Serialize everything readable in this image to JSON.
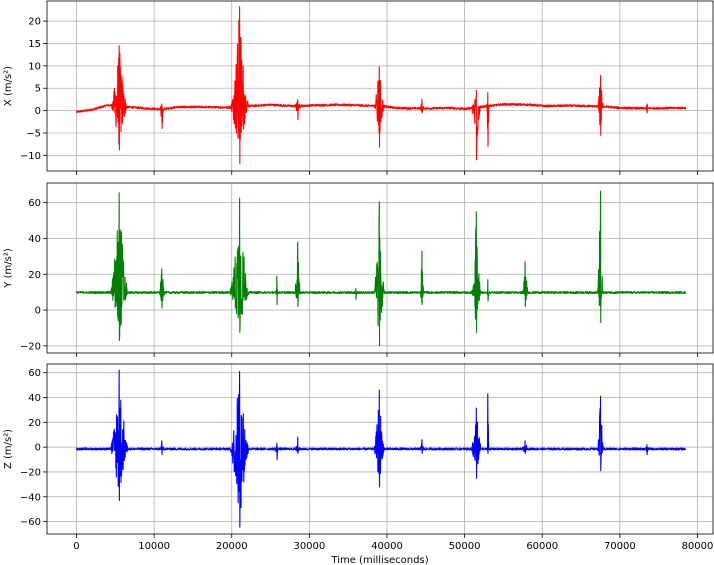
{
  "chart_data": [
    {
      "type": "line",
      "ylabel": "X (m/s²)",
      "xlabel": "",
      "xlim": [
        -3800,
        82000
      ],
      "ylim": [
        -13.5,
        24.5
      ],
      "xticks": [
        0,
        10000,
        20000,
        30000,
        40000,
        50000,
        60000,
        70000,
        80000
      ],
      "yticks": [
        -10,
        -5,
        0,
        5,
        10,
        15,
        20
      ],
      "ytick_labels": [
        "−10",
        "−5",
        "0",
        "5",
        "10",
        "15",
        "20"
      ],
      "show_xtick_labels": false,
      "grid": true,
      "color": "#ff0000",
      "baseline": [
        [
          0,
          -0.3
        ],
        [
          2000,
          0.2
        ],
        [
          4000,
          1.2
        ],
        [
          6500,
          0.8
        ],
        [
          9000,
          0.5
        ],
        [
          11000,
          0.3
        ],
        [
          13000,
          0.8
        ],
        [
          16000,
          0.8
        ],
        [
          19500,
          0.7
        ],
        [
          22000,
          1.0
        ],
        [
          25000,
          1.3
        ],
        [
          28000,
          1.0
        ],
        [
          31000,
          1.2
        ],
        [
          34000,
          1.3
        ],
        [
          37500,
          1.1
        ],
        [
          39500,
          1.0
        ],
        [
          41000,
          0.6
        ],
        [
          43000,
          0.5
        ],
        [
          46000,
          0.5
        ],
        [
          48000,
          0.6
        ],
        [
          50000,
          0.4
        ],
        [
          52500,
          0.9
        ],
        [
          55000,
          1.4
        ],
        [
          58500,
          1.3
        ],
        [
          60500,
          1.0
        ],
        [
          63000,
          1.1
        ],
        [
          66000,
          1.0
        ],
        [
          68000,
          0.9
        ],
        [
          70000,
          0.6
        ],
        [
          73000,
          0.5
        ],
        [
          78500,
          0.6
        ]
      ],
      "bursts": [
        {
          "center": 5500,
          "width": 1100,
          "max": 14.5,
          "min": -8.8
        },
        {
          "center": 11000,
          "width": 300,
          "max": 1.5,
          "min": -4.0
        },
        {
          "center": 21000,
          "width": 1200,
          "max": 23.2,
          "min": -11.8
        },
        {
          "center": 28500,
          "width": 400,
          "max": 2.5,
          "min": -2.0
        },
        {
          "center": 39000,
          "width": 700,
          "max": 9.8,
          "min": -8.2
        },
        {
          "center": 44500,
          "width": 300,
          "max": 2.5,
          "min": -0.5
        },
        {
          "center": 51500,
          "width": 600,
          "max": 4.5,
          "min": -11.0
        },
        {
          "center": 53000,
          "width": 200,
          "max": 4.0,
          "min": -8.0
        },
        {
          "center": 67500,
          "width": 400,
          "max": 7.8,
          "min": -5.5
        },
        {
          "center": 73500,
          "width": 200,
          "max": 1.5,
          "min": -0.5
        }
      ]
    },
    {
      "type": "line",
      "ylabel": "Y (m/s²)",
      "xlabel": "",
      "xlim": [
        -3800,
        82000
      ],
      "ylim": [
        -24,
        71
      ],
      "xticks": [
        0,
        10000,
        20000,
        30000,
        40000,
        50000,
        60000,
        70000,
        80000
      ],
      "yticks": [
        -20,
        0,
        20,
        40,
        60
      ],
      "ytick_labels": [
        "−20",
        "0",
        "20",
        "40",
        "60"
      ],
      "show_xtick_labels": false,
      "grid": true,
      "color": "#008000",
      "baseline": [
        [
          0,
          9.8
        ],
        [
          78500,
          9.8
        ]
      ],
      "bursts": [
        {
          "center": 5500,
          "width": 1200,
          "max": 65.5,
          "min": -17.0
        },
        {
          "center": 11000,
          "width": 400,
          "max": 23.0,
          "min": 1.0
        },
        {
          "center": 21000,
          "width": 1300,
          "max": 62.5,
          "min": -12.5
        },
        {
          "center": 25800,
          "width": 200,
          "max": 19.0,
          "min": 3.0
        },
        {
          "center": 28500,
          "width": 400,
          "max": 38.0,
          "min": 2.0
        },
        {
          "center": 36000,
          "width": 300,
          "max": 12.0,
          "min": 6.0
        },
        {
          "center": 39000,
          "width": 700,
          "max": 60.5,
          "min": -20.0
        },
        {
          "center": 44500,
          "width": 300,
          "max": 33.0,
          "min": 3.0
        },
        {
          "center": 51500,
          "width": 600,
          "max": 55.0,
          "min": -12.5
        },
        {
          "center": 53000,
          "width": 200,
          "max": 17.0,
          "min": 5.0
        },
        {
          "center": 57800,
          "width": 400,
          "max": 27.0,
          "min": 2.0
        },
        {
          "center": 67500,
          "width": 400,
          "max": 66.5,
          "min": -7.0
        }
      ]
    },
    {
      "type": "line",
      "ylabel": "Z (m/s²)",
      "xlabel": "Time (milliseconds)",
      "xlim": [
        -3800,
        82000
      ],
      "ylim": [
        -70,
        67
      ],
      "xticks": [
        0,
        10000,
        20000,
        30000,
        40000,
        50000,
        60000,
        70000,
        80000
      ],
      "xtick_labels": [
        "0",
        "10000",
        "20000",
        "30000",
        "40000",
        "50000",
        "60000",
        "70000",
        "80000"
      ],
      "yticks": [
        -60,
        -40,
        -20,
        0,
        20,
        40,
        60
      ],
      "ytick_labels": [
        "−60",
        "−40",
        "−20",
        "0",
        "20",
        "40",
        "60"
      ],
      "show_xtick_labels": true,
      "grid": true,
      "color": "#0000ff",
      "baseline": [
        [
          0,
          -1.5
        ],
        [
          78500,
          -1.5
        ]
      ],
      "bursts": [
        {
          "center": 5500,
          "width": 1200,
          "max": 62.0,
          "min": -43.0
        },
        {
          "center": 11000,
          "width": 300,
          "max": 5.0,
          "min": -6.0
        },
        {
          "center": 21000,
          "width": 1300,
          "max": 61.0,
          "min": -64.5
        },
        {
          "center": 25800,
          "width": 200,
          "max": 3.0,
          "min": -10.0
        },
        {
          "center": 28500,
          "width": 400,
          "max": 8.0,
          "min": -5.0
        },
        {
          "center": 39000,
          "width": 700,
          "max": 46.0,
          "min": -32.0
        },
        {
          "center": 44500,
          "width": 300,
          "max": 6.0,
          "min": -5.0
        },
        {
          "center": 51500,
          "width": 700,
          "max": 31.5,
          "min": -25.0
        },
        {
          "center": 53000,
          "width": 150,
          "max": 43.0,
          "min": -5.0
        },
        {
          "center": 57800,
          "width": 400,
          "max": 5.0,
          "min": -5.0
        },
        {
          "center": 67500,
          "width": 400,
          "max": 41.0,
          "min": -19.0
        },
        {
          "center": 73500,
          "width": 200,
          "max": 2.0,
          "min": -6.0
        }
      ]
    }
  ]
}
